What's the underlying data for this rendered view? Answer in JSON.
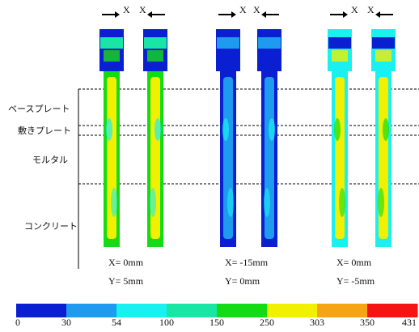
{
  "layers": [
    "ベースプレート",
    "敷きプレート",
    "モルタル",
    "コンクリート"
  ],
  "panels": [
    {
      "forces": [
        "X",
        "X"
      ],
      "x_offset": "X= 0mm",
      "y_offset": "Y= 5mm"
    },
    {
      "forces": [
        "X",
        "X"
      ],
      "x_offset": "X= -15mm",
      "y_offset": "Y= 0mm"
    },
    {
      "forces": [
        "X",
        "X"
      ],
      "x_offset": "X= 0mm",
      "y_offset": "Y= -5mm"
    }
  ],
  "colorbar": {
    "colors": [
      "#0a1ed2",
      "#1e9bef",
      "#19f0f0",
      "#19e6a5",
      "#14dc14",
      "#f0f000",
      "#f5a514",
      "#f51414"
    ],
    "ticks": [
      "0",
      "30",
      "54",
      "100",
      "150",
      "250",
      "303",
      "350",
      "431"
    ]
  }
}
